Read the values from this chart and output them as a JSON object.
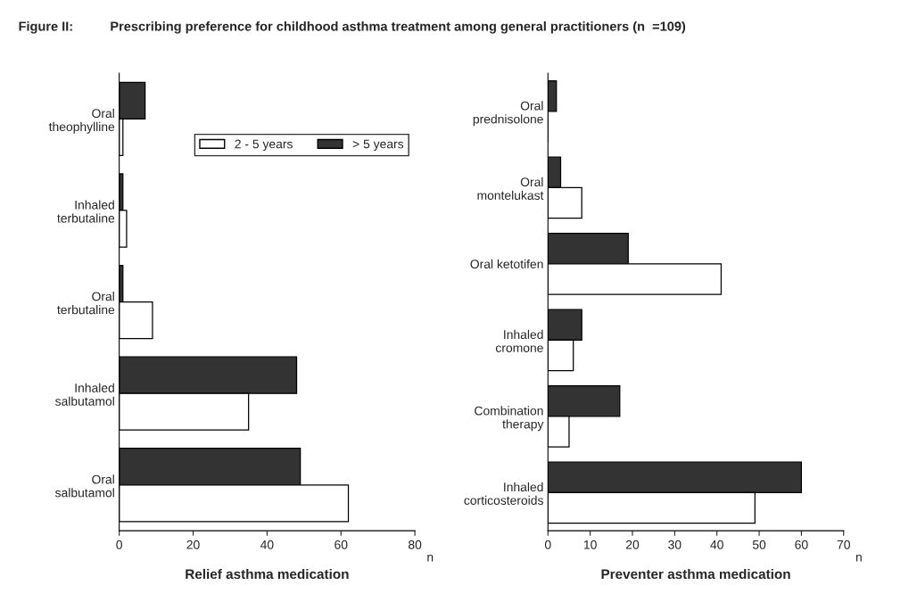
{
  "chart_data": [
    {
      "type": "bar",
      "orientation": "horizontal",
      "title": "Figure II:",
      "subtitle": "Prescribing preference for childhood asthma treatment among general practitioners (n  =109)",
      "xlabel": "Relief asthma medication",
      "annotations": [
        "n"
      ],
      "categories": [
        "Oral\ntheophylline",
        "Inhaled\nterbutaline",
        "Oral\nterbutaline",
        "Inhaled\nsalbutamol",
        "Oral\nsalbutamol"
      ],
      "series": [
        {
          "name": "> 5 years",
          "color": "#333333",
          "values": [
            7,
            1,
            1,
            48,
            49
          ]
        },
        {
          "name": "2 - 5 years",
          "color": "#ffffff",
          "values": [
            1,
            2,
            9,
            35,
            62
          ]
        }
      ],
      "xlim": [
        0,
        80
      ],
      "xticks": [
        0,
        20,
        40,
        60,
        80
      ],
      "grid": false,
      "legend": "top right"
    },
    {
      "type": "bar",
      "orientation": "horizontal",
      "xlabel": "Preventer asthma medication",
      "annotations": [
        "n"
      ],
      "categories": [
        "Oral\nprednisolone",
        "Oral\nmontelukast",
        "Oral ketotifen",
        "Inhaled\ncromone",
        "Combination\ntherapy",
        "Inhaled\ncorticosteroids"
      ],
      "series": [
        {
          "color": "#333333",
          "values": [
            2,
            3,
            19,
            8,
            17,
            60
          ]
        },
        {
          "color": "#ffffff",
          "values": [
            0,
            8,
            41,
            6,
            5,
            49
          ]
        }
      ],
      "xlim": [
        0,
        70
      ],
      "xticks": [
        0,
        10,
        20,
        30,
        40,
        50,
        60,
        70
      ],
      "grid": false,
      "legend": false
    }
  ]
}
